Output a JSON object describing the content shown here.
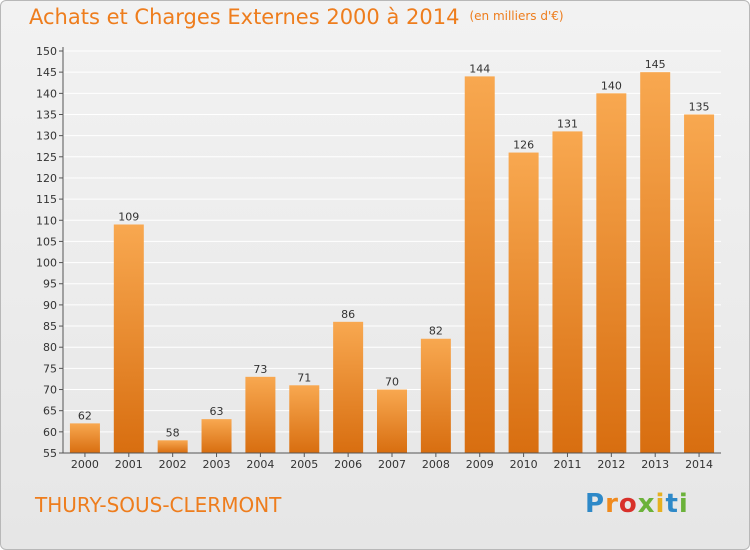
{
  "title": "Achats et Charges Externes 2000 à 2014",
  "unit": "(en milliers d'€)",
  "commune": "THURY-SOUS-CLERMONT",
  "logo": {
    "p1": "P",
    "p2": "r",
    "p3": "o",
    "p4": "x",
    "p5": "i",
    "p6": "t",
    "p7": "i"
  },
  "colors": {
    "bar_light": "#f8a850",
    "bar_dark": "#d86e10",
    "title": "#ee7d1d",
    "grid": "#ffffff"
  },
  "chart_data": {
    "type": "bar",
    "categories": [
      "2000",
      "2001",
      "2002",
      "2003",
      "2004",
      "2005",
      "2006",
      "2007",
      "2008",
      "2009",
      "2010",
      "2011",
      "2012",
      "2013",
      "2014"
    ],
    "values": [
      62,
      109,
      58,
      63,
      73,
      71,
      86,
      70,
      82,
      144,
      126,
      131,
      140,
      145,
      135
    ],
    "ylim": [
      55,
      150
    ],
    "yticks": [
      55,
      60,
      65,
      70,
      75,
      80,
      85,
      90,
      95,
      100,
      105,
      110,
      115,
      120,
      125,
      130,
      135,
      140,
      145,
      150
    ],
    "grid": true,
    "title": "Achats et Charges Externes 2000 à 2014",
    "xlabel": "",
    "ylabel": ""
  }
}
